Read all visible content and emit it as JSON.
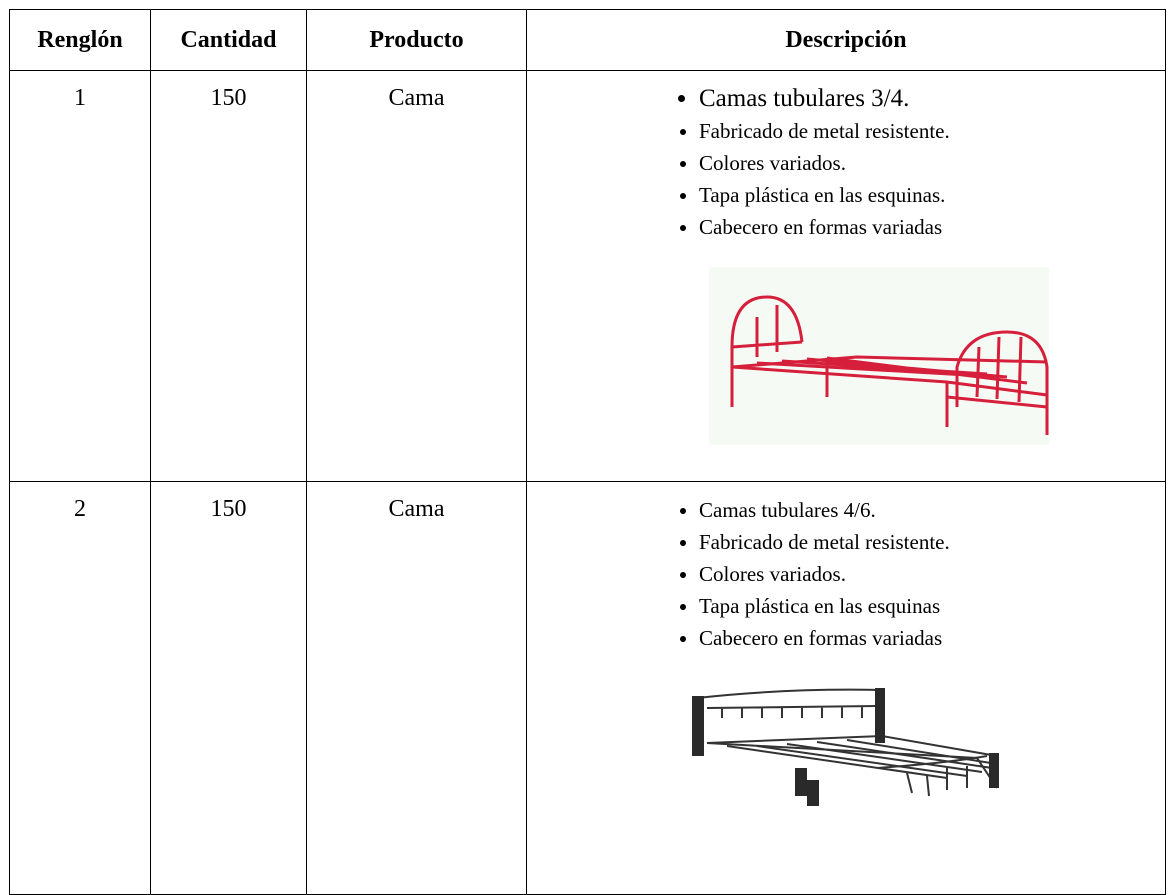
{
  "table": {
    "header": [
      "Renglón",
      "Cantidad",
      "Producto",
      "Descripción"
    ],
    "rows": [
      [
        1,
        150,
        "Cama",
        [
          "Camas tubulares 3/4.",
          "Fabricado de metal resistente.",
          "Colores variados.",
          "Tapa plástica en las esquinas.",
          "Cabecero en formas variadas"
        ]
      ],
      [
        2,
        150,
        "Cama",
        [
          "Camas tubulares 4/6.",
          "Fabricado de metal resistente.",
          "Colores variados.",
          "Tapa plástica en las esquinas",
          "Cabecero en formas variadas"
        ]
      ]
    ]
  }
}
